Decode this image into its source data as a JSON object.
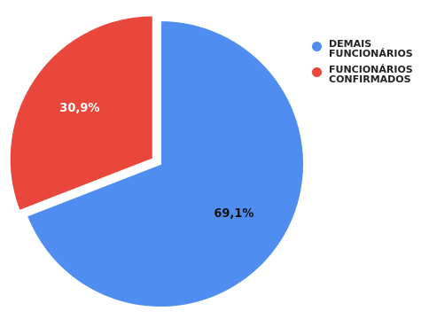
{
  "chart_data": {
    "type": "pie",
    "title": "",
    "categories": [
      "DEMAIS FUNCIONÁRIOS",
      "FUNCIONÁRIOS CONFIRMADOS"
    ],
    "values": [
      69.1,
      30.9
    ],
    "data_labels": [
      "69,1%",
      "30,9%"
    ],
    "colors": [
      "#4f8ef0",
      "#e9473b"
    ],
    "label_colors": [
      "#111111",
      "#ffffff"
    ],
    "exploded": [
      false,
      true
    ],
    "legend_position": "right"
  },
  "legend": {
    "items": [
      {
        "label": "DEMAIS\nFUNCIONÁRIOS",
        "color": "#4f8ef0"
      },
      {
        "label": "FUNCIONÁRIOS\nCONFIRMADOS",
        "color": "#e9473b"
      }
    ]
  }
}
